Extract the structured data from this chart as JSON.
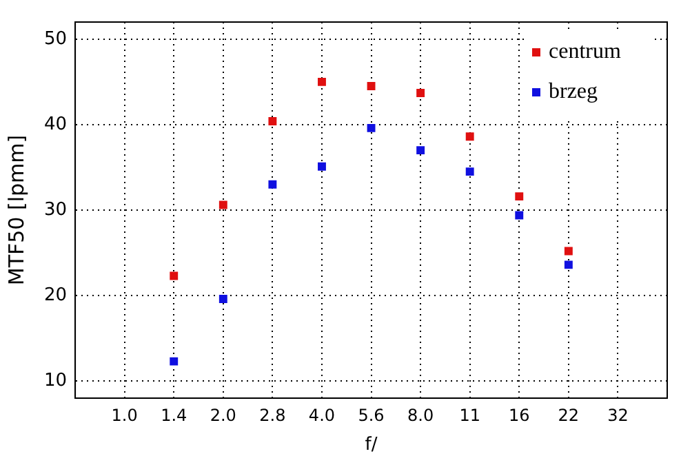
{
  "chart_data": {
    "type": "scatter",
    "xlabel": "f/",
    "ylabel": "MTF50 [lpmm]",
    "categories": [
      "1.0",
      "1.4",
      "2.0",
      "2.8",
      "4.0",
      "5.6",
      "8.0",
      "11",
      "16",
      "22",
      "32"
    ],
    "series": [
      {
        "name": "centrum",
        "color": "#e01010",
        "values": [
          null,
          22.3,
          30.6,
          40.4,
          45.0,
          44.5,
          43.7,
          38.6,
          31.6,
          25.2,
          null
        ]
      },
      {
        "name": "brzeg",
        "color": "#1010e0",
        "values": [
          null,
          12.3,
          19.6,
          33.0,
          35.1,
          39.6,
          37.0,
          34.5,
          29.4,
          23.6,
          null
        ]
      }
    ],
    "ylim": [
      8,
      52
    ],
    "yticks": [
      10,
      20,
      30,
      40,
      50
    ],
    "grid": true,
    "legend": "top right",
    "marker": "square"
  }
}
